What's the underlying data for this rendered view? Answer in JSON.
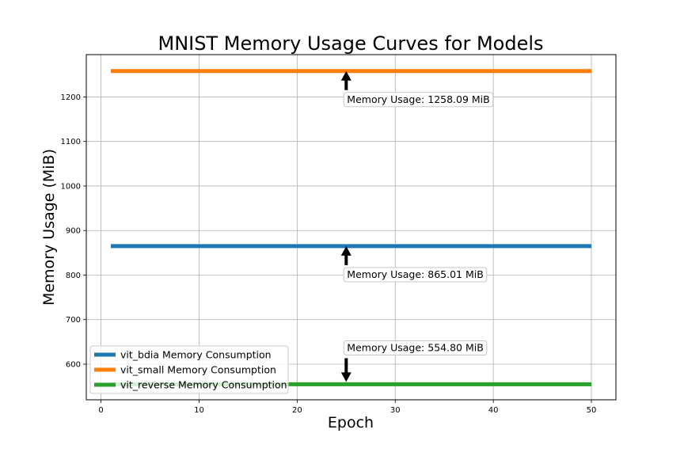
{
  "chart_data": {
    "type": "line",
    "title": "MNIST Memory Usage Curves for Models",
    "xlabel": "Epoch",
    "ylabel": "Memory Usage (MiB)",
    "xlim": [
      -1.5,
      52.5
    ],
    "ylim": [
      520,
      1295
    ],
    "xticks": [
      0,
      10,
      20,
      30,
      40,
      50
    ],
    "yticks": [
      600,
      700,
      800,
      900,
      1000,
      1100,
      1200
    ],
    "grid": true,
    "legend_position": "lower-left",
    "series": [
      {
        "name": "vit_bdia Memory Consumption",
        "color": "#1f77b4",
        "x": [
          1,
          50
        ],
        "y": [
          865.01,
          865.01
        ]
      },
      {
        "name": "vit_small Memory Consumption",
        "color": "#ff7f0e",
        "x": [
          1,
          50
        ],
        "y": [
          1258.09,
          1258.09
        ]
      },
      {
        "name": "vit_reverse Memory Consumption",
        "color": "#2ca02c",
        "x": [
          1,
          50
        ],
        "y": [
          554.8,
          554.8
        ]
      }
    ],
    "annotations": [
      {
        "text": "Memory Usage: 1258.09 MiB",
        "x": 25,
        "y": 1258.09,
        "direction": "up"
      },
      {
        "text": "Memory Usage: 865.01 MiB",
        "x": 25,
        "y": 865.01,
        "direction": "up"
      },
      {
        "text": "Memory Usage: 554.80 MiB",
        "x": 25,
        "y": 554.8,
        "direction": "down"
      }
    ]
  }
}
